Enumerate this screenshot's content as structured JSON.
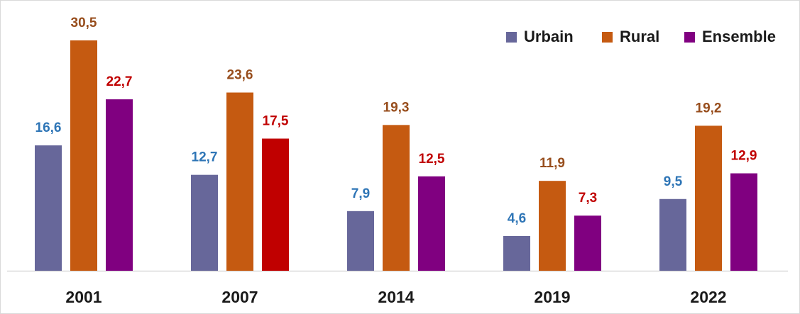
{
  "chart_data": {
    "type": "bar",
    "categories": [
      "2001",
      "2007",
      "2014",
      "2019",
      "2022"
    ],
    "series": [
      {
        "name": "Urbain",
        "color": "#67679a",
        "label_color": "#2e75b6",
        "values": [
          16.6,
          12.7,
          7.9,
          4.6,
          9.5
        ],
        "value_labels": [
          "16,6",
          "12,7",
          "7,9",
          "4,6",
          "9,5"
        ]
      },
      {
        "name": "Rural",
        "color": "#c55a11",
        "label_color": "#974d1c",
        "values": [
          30.5,
          23.6,
          19.3,
          11.9,
          19.2
        ],
        "value_labels": [
          "30,5",
          "23,6",
          "19,3",
          "11,9",
          "19,2"
        ]
      },
      {
        "name": "Ensemble",
        "color": "#800080",
        "colors": [
          "#800080",
          "#c00000",
          "#800080",
          "#800080",
          "#800080"
        ],
        "label_color": "#c00000",
        "values": [
          22.7,
          17.5,
          12.5,
          7.3,
          12.9
        ],
        "value_labels": [
          "22,7",
          "17,5",
          "12,5",
          "7,3",
          "12,9"
        ]
      }
    ],
    "legend": "top-right"
  }
}
